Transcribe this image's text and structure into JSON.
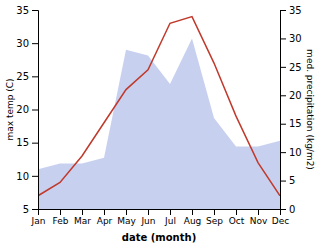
{
  "chart_data": {
    "type": "line",
    "categories": [
      "Jan",
      "Feb",
      "Mar",
      "Apr",
      "May",
      "Jun",
      "Jul",
      "Aug",
      "Sep",
      "Oct",
      "Nov",
      "Dec"
    ],
    "series": [
      {
        "type": "area",
        "axis": "y2",
        "color": "#c8d0f0",
        "values": [
          7,
          8,
          8,
          9,
          28,
          27,
          22,
          30,
          16,
          11,
          11,
          12
        ]
      },
      {
        "type": "line",
        "color": "#c0392b",
        "values": [
          7,
          9,
          13,
          18,
          23,
          26,
          33,
          34,
          27,
          19,
          12,
          7
        ]
      }
    ],
    "xlabel": "date (month)",
    "ylabel": "max temp (C)",
    "y2label": "med. precipitation (kg/m2)",
    "ylim": [
      5,
      35
    ],
    "yticks": [
      5,
      10,
      15,
      20,
      25,
      30,
      35
    ],
    "y2lim": [
      0,
      35
    ],
    "y2ticks": [
      0,
      5,
      10,
      15,
      20,
      25,
      30,
      35
    ]
  }
}
